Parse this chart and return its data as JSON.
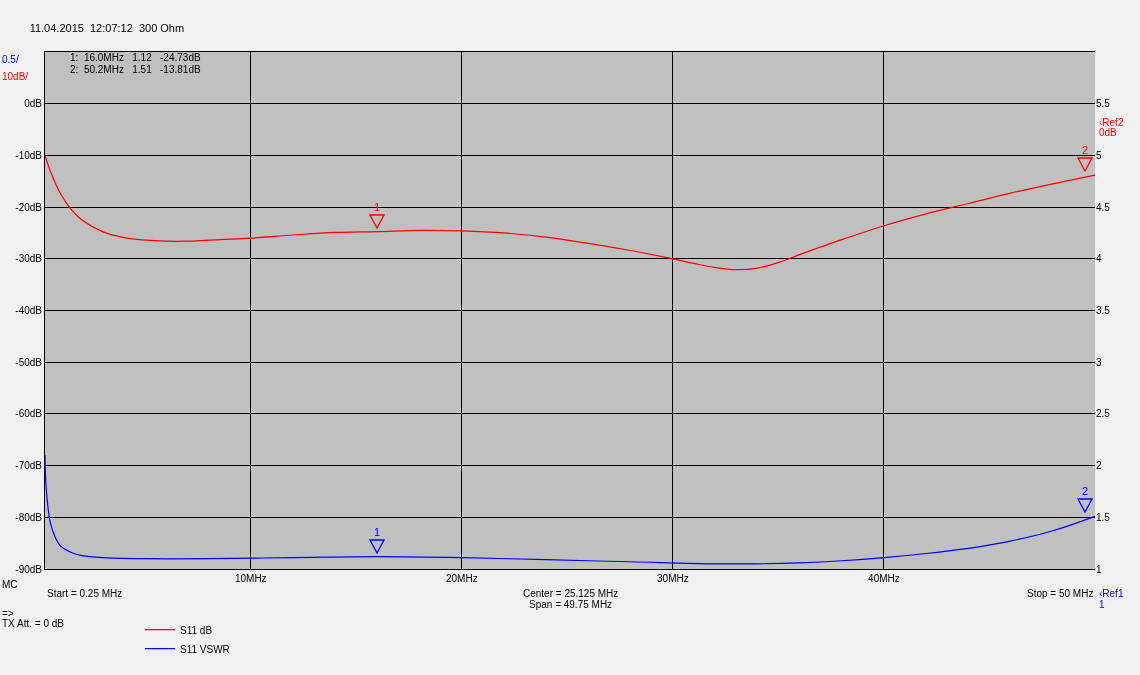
{
  "chart_data": {
    "type": "line",
    "title": "11.04.2015  12:07:12  300 Ohm",
    "x": [
      0.25,
      0.5,
      1,
      1.5,
      2,
      3,
      4,
      5,
      6,
      7,
      8,
      10,
      12,
      14,
      16,
      18,
      20,
      22,
      24,
      26,
      28,
      30,
      31,
      32,
      33,
      34,
      35,
      36,
      38,
      40,
      42,
      44,
      46,
      48,
      50
    ],
    "series": [
      {
        "name": "S11 dB",
        "color": "#ff0000",
        "values": [
          -10,
          -13,
          -17.5,
          -20.5,
          -22.5,
          -24.8,
          -25.9,
          -26.4,
          -26.6,
          -26.6,
          -26.4,
          -26,
          -25.4,
          -24.9,
          -24.73,
          -24.5,
          -24.6,
          -25,
          -25.8,
          -27,
          -28.4,
          -30,
          -30.9,
          -31.7,
          -32.1,
          -31.8,
          -30.7,
          -29.2,
          -26.3,
          -23.6,
          -21.3,
          -19.3,
          -17.3,
          -15.5,
          -13.81
        ]
      },
      {
        "name": "S11 VSWR",
        "color": "#0000ff",
        "axis": "y2",
        "x": [
          0.25,
          0.3,
          0.5,
          0.75,
          1,
          1.5,
          2,
          3,
          5,
          8,
          12,
          16,
          20,
          24,
          28,
          32,
          34,
          36,
          38,
          40,
          42,
          44,
          46,
          48,
          50
        ],
        "values": [
          2.1,
          1.8,
          1.45,
          1.3,
          1.22,
          1.16,
          1.13,
          1.11,
          1.1,
          1.1,
          1.11,
          1.12,
          1.11,
          1.09,
          1.07,
          1.05,
          1.05,
          1.06,
          1.08,
          1.11,
          1.15,
          1.2,
          1.27,
          1.37,
          1.51
        ]
      }
    ],
    "xlim": [
      0.25,
      50
    ],
    "xticks": [
      {
        "value": 10,
        "label": "10MHz"
      },
      {
        "value": 20,
        "label": "20MHz"
      },
      {
        "value": 30,
        "label": "30MHz"
      },
      {
        "value": 40,
        "label": "40MHz"
      }
    ],
    "ylim": [
      -90,
      10
    ],
    "yticks": [
      {
        "value": -90,
        "label": "-90dB"
      },
      {
        "value": -80,
        "label": "-80dB"
      },
      {
        "value": -70,
        "label": "-70dB"
      },
      {
        "value": -60,
        "label": "-60dB"
      },
      {
        "value": -50,
        "label": "-50dB"
      },
      {
        "value": -40,
        "label": "-40dB"
      },
      {
        "value": -30,
        "label": "-30dB"
      },
      {
        "value": -20,
        "label": "-20dB"
      },
      {
        "value": -10,
        "label": "-10dB"
      },
      {
        "value": 0,
        "label": "0dB"
      }
    ],
    "y2lim": [
      1,
      6
    ],
    "y2ticks": [
      1,
      1.5,
      2,
      2.5,
      3,
      3.5,
      4,
      4.5,
      5,
      5.5
    ],
    "grid": true,
    "legend": "bottom left",
    "marker": "none",
    "line_style": "solid",
    "annotations": [
      "0.5/",
      "10dB/",
      "1:  16.0MHz   1.12   -24.73dB",
      "2:  50.2MHz   1.51   -13.81dB",
      "MC",
      "Start = 0.25 MHz",
      "Center = 25.125 MHz",
      "Span = 49.75 MHz",
      "Stop = 50 MHz",
      "=>",
      "TX Att. = 0 dB",
      "‹Ref2",
      "0dB",
      "‹Ref1",
      "1",
      {
        "text": "1",
        "x": 16,
        "y": -24.73
      },
      {
        "text": "2",
        "x": 50,
        "y": -13.81
      },
      "1",
      "2"
    ]
  }
}
